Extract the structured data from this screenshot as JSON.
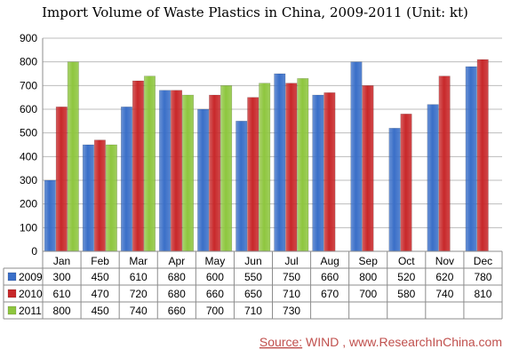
{
  "chart_data": {
    "type": "bar",
    "title": "Import Volume of Waste Plastics in China, 2009-2011 (Unit: kt)",
    "categories": [
      "Jan",
      "Feb",
      "Mar",
      "Apr",
      "May",
      "Jun",
      "Jul",
      "Aug",
      "Sep",
      "Oct",
      "Nov",
      "Dec"
    ],
    "series": [
      {
        "name": "2009",
        "color": "#3a6fc8",
        "values": [
          300,
          450,
          610,
          680,
          600,
          550,
          750,
          660,
          800,
          520,
          620,
          780
        ]
      },
      {
        "name": "2010",
        "color": "#c8282a",
        "values": [
          610,
          470,
          720,
          680,
          660,
          650,
          710,
          670,
          700,
          580,
          740,
          810
        ]
      },
      {
        "name": "2011",
        "color": "#8ec63f",
        "values": [
          800,
          450,
          740,
          660,
          700,
          710,
          730,
          null,
          null,
          null,
          null,
          null
        ]
      }
    ],
    "ylim": [
      0,
      900
    ],
    "yticks": [
      0,
      100,
      200,
      300,
      400,
      500,
      600,
      700,
      800,
      900
    ],
    "grid": true,
    "legend": "data-table"
  },
  "source": {
    "prefix": "Source:",
    "text": " WIND , www.ResearchInChina.com"
  }
}
